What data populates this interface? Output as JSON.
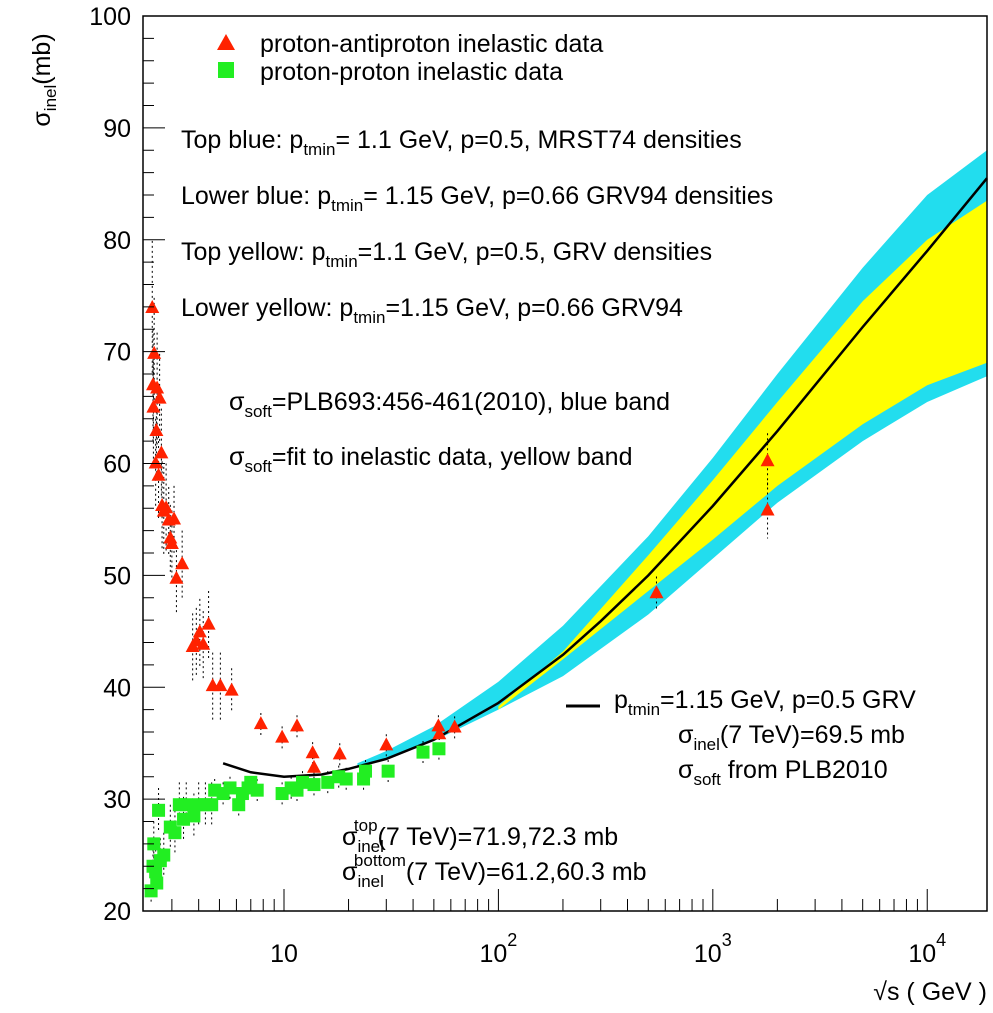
{
  "chart_data": {
    "type": "scatter",
    "x_scale": "log",
    "y_scale": "linear",
    "xlim": [
      2.2,
      19000
    ],
    "ylim": [
      20,
      100
    ],
    "ylabel": {
      "main": "σ",
      "sub": "inel",
      "rest": "(mb)"
    },
    "xlabel": "√s ( GeV )",
    "x_ticks": [
      {
        "value": 10,
        "base": "10",
        "exp": ""
      },
      {
        "value": 100,
        "base": "10",
        "exp": "2"
      },
      {
        "value": 1000,
        "base": "10",
        "exp": "3"
      },
      {
        "value": 10000,
        "base": "10",
        "exp": "4"
      }
    ],
    "y_ticks": [
      20,
      30,
      40,
      50,
      60,
      70,
      80,
      90,
      100
    ],
    "legend": [
      {
        "label": "proton-antiproton  inelastic data",
        "marker": "triangle",
        "color": "#ff2200"
      },
      {
        "label": "proton-proton inelastic data",
        "marker": "square",
        "color": "#22ee22"
      }
    ],
    "notes": [
      {
        "text": "Top blue: p",
        "sub": "tmin",
        "rest": "= 1.1 GeV, p=0.5, MRST74 densities"
      },
      {
        "text": "Lower blue: p",
        "sub": "tmin",
        "rest": "= 1.15 GeV, p=0.66 GRV94 densities"
      },
      {
        "text": "Top yellow: p",
        "sub": "tmin",
        "rest": "=1.1 GeV, p=0.5, GRV densities"
      },
      {
        "text": "Lower yellow: p",
        "sub": "tmin",
        "rest": "=1.15 GeV, p=0.66 GRV94"
      }
    ],
    "soft_notes": [
      {
        "sym": "σ",
        "sub": "soft",
        "rest": "=PLB693:456-461(2010), blue band"
      },
      {
        "sym": "σ",
        "sub": "soft",
        "rest": "=fit to inelastic data, yellow band"
      }
    ],
    "curve_legend": {
      "l1": {
        "text": "p",
        "sub": "tmin",
        "rest": "=1.15 GeV, p=0.5 GRV"
      },
      "l2": {
        "sym": "σ",
        "sub": "inel",
        "rest": "(7 TeV)=69.5 mb"
      },
      "l3": {
        "sym": "σ",
        "sub": "soft",
        "rest": " from PLB2010"
      }
    },
    "band_notes": {
      "top": {
        "sym": "σ",
        "sub": "inel",
        "sup": "top",
        "rest": "(7 TeV)=71.9,72.3 mb"
      },
      "bottom": {
        "sym": "σ",
        "sub": "inel",
        "sup": "bottom",
        "rest": "(7 TeV)=61.2,60.3 mb"
      }
    },
    "colors": {
      "blue_band": "#22ddee",
      "yellow_band": "#ffff00",
      "curve": "#000000",
      "pbar": "#ff2200",
      "pp": "#22ee22"
    },
    "series": [
      {
        "name": "proton-antiproton  inelastic data",
        "points": [
          [
            2.43,
            73.9,
            6
          ],
          [
            2.45,
            67.0,
            5
          ],
          [
            2.46,
            65.0,
            5
          ],
          [
            2.48,
            69.8,
            5
          ],
          [
            2.52,
            60.0,
            4
          ],
          [
            2.54,
            62.9,
            4
          ],
          [
            2.56,
            66.7,
            5
          ],
          [
            2.6,
            58.9,
            4
          ],
          [
            2.63,
            65.8,
            4
          ],
          [
            2.68,
            60.9,
            4
          ],
          [
            2.7,
            56.2,
            4
          ],
          [
            2.75,
            55.7,
            4
          ],
          [
            2.82,
            56.0,
            4
          ],
          [
            2.9,
            54.9,
            3
          ],
          [
            2.95,
            53.3,
            3
          ],
          [
            3.0,
            52.8,
            3
          ],
          [
            3.07,
            55.0,
            3
          ],
          [
            3.15,
            49.7,
            3
          ],
          [
            3.35,
            51.0,
            3
          ],
          [
            3.75,
            43.6,
            3
          ],
          [
            3.9,
            44.1,
            3
          ],
          [
            4.05,
            44.9,
            3
          ],
          [
            4.2,
            43.8,
            3
          ],
          [
            4.45,
            45.6,
            3
          ],
          [
            4.65,
            40.1,
            3
          ],
          [
            5.05,
            40.1,
            3
          ],
          [
            5.7,
            39.7,
            2
          ],
          [
            7.8,
            36.7,
            1
          ],
          [
            9.8,
            35.5,
            1
          ],
          [
            11.5,
            36.5,
            1
          ],
          [
            13.6,
            34.1,
            1
          ],
          [
            13.8,
            32.8,
            1
          ],
          [
            18.2,
            34.0,
            1
          ],
          [
            30.0,
            34.8,
            1
          ],
          [
            52.5,
            36.5,
            1
          ],
          [
            53.0,
            35.8,
            1
          ],
          [
            62.5,
            36.4,
            1
          ],
          [
            546,
            48.4,
            1.5
          ],
          [
            1800,
            60.2,
            2.5
          ],
          [
            1800,
            55.8,
            2.5
          ]
        ]
      },
      {
        "name": "proton-proton inelastic data",
        "points": [
          [
            2.4,
            21.8,
            1
          ],
          [
            2.45,
            24.0,
            1.5
          ],
          [
            2.47,
            26.0,
            2
          ],
          [
            2.52,
            23.5,
            2
          ],
          [
            2.55,
            22.5,
            1
          ],
          [
            2.6,
            29.0,
            2
          ],
          [
            2.65,
            24.5,
            2
          ],
          [
            2.75,
            25.0,
            2
          ],
          [
            2.95,
            27.5,
            2
          ],
          [
            3.1,
            27.0,
            2
          ],
          [
            3.25,
            29.5,
            2
          ],
          [
            3.4,
            28.2,
            2
          ],
          [
            3.5,
            29.5,
            2
          ],
          [
            3.8,
            28.5,
            2
          ],
          [
            4.0,
            29.5,
            2
          ],
          [
            4.3,
            29.5,
            2
          ],
          [
            4.6,
            29.5,
            2
          ],
          [
            4.75,
            30.8,
            1
          ],
          [
            5.2,
            30.5,
            1
          ],
          [
            5.6,
            31.0,
            1
          ],
          [
            6.15,
            29.5,
            1
          ],
          [
            6.4,
            30.5,
            1
          ],
          [
            6.8,
            31.0,
            1
          ],
          [
            7.0,
            31.5,
            1
          ],
          [
            7.5,
            30.8,
            1
          ],
          [
            9.8,
            30.5,
            1
          ],
          [
            10.8,
            31.0,
            1
          ],
          [
            11.5,
            30.8,
            1
          ],
          [
            12.2,
            31.5,
            1
          ],
          [
            13.8,
            31.3,
            1
          ],
          [
            16.0,
            31.5,
            1
          ],
          [
            18.0,
            32.0,
            1
          ],
          [
            19.5,
            31.8,
            1
          ],
          [
            23.5,
            31.8,
            1
          ],
          [
            24.0,
            32.5,
            1
          ],
          [
            30.6,
            32.5,
            1
          ],
          [
            44.5,
            34.2,
            1
          ],
          [
            52.8,
            34.5,
            1
          ]
        ]
      },
      {
        "name": "p_tmin=1.15 GeV, p=0.5 GRV",
        "curve": [
          [
            5.2,
            33.2
          ],
          [
            7,
            32.4
          ],
          [
            10,
            32.0
          ],
          [
            15,
            32.2
          ],
          [
            20,
            32.7
          ],
          [
            30,
            33.6
          ],
          [
            50,
            35.3
          ],
          [
            100,
            38.6
          ],
          [
            200,
            42.9
          ],
          [
            300,
            45.9
          ],
          [
            500,
            50.0
          ],
          [
            1000,
            56.2
          ],
          [
            2000,
            62.9
          ],
          [
            5000,
            72.2
          ],
          [
            10000,
            79.0
          ],
          [
            19000,
            85.5
          ]
        ]
      }
    ],
    "blue_band": {
      "upper": [
        [
          22,
          33.2
        ],
        [
          30,
          34.3
        ],
        [
          50,
          36.5
        ],
        [
          100,
          40.5
        ],
        [
          200,
          45.5
        ],
        [
          500,
          53.5
        ],
        [
          1000,
          60.5
        ],
        [
          2000,
          68.0
        ],
        [
          5000,
          77.5
        ],
        [
          10000,
          84.0
        ],
        [
          19000,
          88.0
        ]
      ],
      "lower": [
        [
          22,
          33.0
        ],
        [
          30,
          33.6
        ],
        [
          50,
          35.2
        ],
        [
          100,
          38.0
        ],
        [
          200,
          41.0
        ],
        [
          500,
          46.5
        ],
        [
          1000,
          51.5
        ],
        [
          2000,
          56.5
        ],
        [
          5000,
          62.0
        ],
        [
          10000,
          65.5
        ],
        [
          19000,
          67.8
        ]
      ]
    },
    "yellow_band": {
      "upper": [
        [
          100,
          38.3
        ],
        [
          200,
          43.2
        ],
        [
          500,
          51.8
        ],
        [
          1000,
          58.5
        ],
        [
          2000,
          65.5
        ],
        [
          5000,
          74.5
        ],
        [
          10000,
          80.0
        ],
        [
          19000,
          83.5
        ]
      ],
      "lower": [
        [
          100,
          38.0
        ],
        [
          200,
          42.5
        ],
        [
          500,
          48.6
        ],
        [
          1000,
          53.2
        ],
        [
          2000,
          58.0
        ],
        [
          5000,
          63.5
        ],
        [
          10000,
          67.0
        ],
        [
          19000,
          69.0
        ]
      ]
    }
  }
}
